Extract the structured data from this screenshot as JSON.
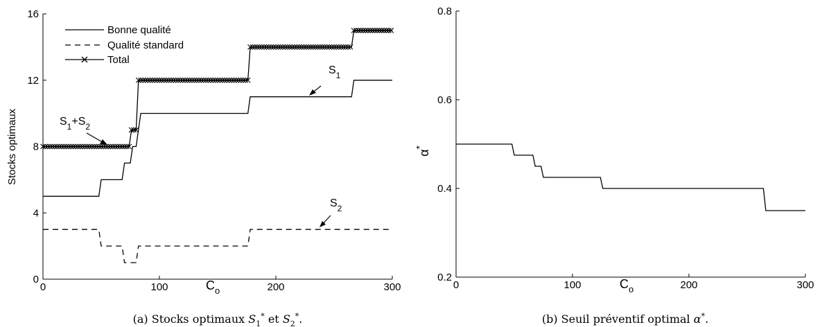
{
  "chart_data": [
    {
      "type": "line",
      "caption": "(a) Stocks optimaux S1* et S2*.",
      "xlabel": "C",
      "xlabel_sub": "o",
      "ylabel": "Stocks optimaux",
      "xlim": [
        0,
        300
      ],
      "ylim": [
        0,
        16
      ],
      "xticks": [
        0,
        100,
        200,
        300
      ],
      "yticks": [
        0,
        4,
        8,
        12,
        16
      ],
      "grid": false,
      "legend_position": "top-left",
      "series": [
        {
          "name": "Bonne qualité",
          "style": "solid",
          "x": [
            0,
            48,
            50,
            68,
            70,
            75,
            77,
            80,
            84,
            176,
            178,
            265,
            267,
            300
          ],
          "y": [
            5,
            5,
            6,
            6,
            7,
            7,
            8,
            8,
            10,
            10,
            11,
            11,
            12,
            12
          ]
        },
        {
          "name": "Qualité standard",
          "style": "dashed",
          "x": [
            0,
            48,
            50,
            68,
            70,
            80,
            82,
            176,
            178,
            300
          ],
          "y": [
            3,
            3,
            2,
            2,
            1,
            1,
            2,
            2,
            3,
            3
          ]
        },
        {
          "name": "Total",
          "style": "solid-x-markers",
          "x": [
            0,
            74,
            76,
            80,
            82,
            176,
            178,
            265,
            267,
            300
          ],
          "y": [
            8,
            8,
            9,
            9,
            12,
            12,
            14,
            14,
            15,
            15
          ]
        }
      ],
      "annotations": [
        {
          "text": "S",
          "sub": "1",
          "point": [
            237,
            11
          ]
        },
        {
          "text": "S",
          "sub": "2",
          "point": [
            238,
            3
          ]
        },
        {
          "text": "S",
          "sub": "1",
          "plus": "+S",
          "sub2": "2",
          "point": [
            52,
            8
          ]
        }
      ]
    },
    {
      "type": "line",
      "caption": "(b) Seuil préventif optimal α*.",
      "xlabel": "C",
      "xlabel_sub": "o",
      "ylabel": "α",
      "ylabel_sup": "*",
      "xlim": [
        0,
        300
      ],
      "ylim": [
        0.2,
        0.8
      ],
      "xticks": [
        0,
        100,
        200,
        300
      ],
      "yticks": [
        0.2,
        0.4,
        0.6,
        0.8
      ],
      "grid": false,
      "series": [
        {
          "style": "solid",
          "x": [
            0,
            48,
            50,
            66,
            68,
            73,
            75,
            124,
            126,
            264,
            266,
            300
          ],
          "y": [
            0.5,
            0.5,
            0.475,
            0.475,
            0.45,
            0.45,
            0.425,
            0.425,
            0.4,
            0.4,
            0.35,
            0.35
          ]
        }
      ]
    }
  ]
}
